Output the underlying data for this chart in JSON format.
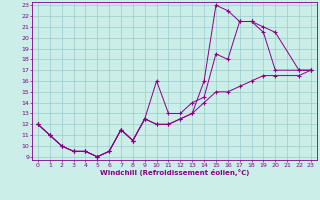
{
  "xlabel": "Windchill (Refroidissement éolien,°C)",
  "bg_color": "#cceee8",
  "line_color": "#880088",
  "grid_color": "#99cccc",
  "xlim": [
    -0.5,
    23.5
  ],
  "ylim": [
    8.7,
    23.3
  ],
  "xticks": [
    0,
    1,
    2,
    3,
    4,
    5,
    6,
    7,
    8,
    9,
    10,
    11,
    12,
    13,
    14,
    15,
    16,
    17,
    18,
    19,
    20,
    21,
    22,
    23
  ],
  "yticks": [
    9,
    10,
    11,
    12,
    13,
    14,
    15,
    16,
    17,
    18,
    19,
    20,
    21,
    22,
    23
  ],
  "line1_x": [
    0,
    1,
    2,
    3,
    4,
    5,
    6,
    7,
    8,
    9,
    10,
    11,
    12,
    13,
    14,
    15,
    16,
    17,
    18,
    19,
    20,
    22,
    23
  ],
  "line1_y": [
    12,
    11,
    10,
    9.5,
    9.5,
    9,
    9.5,
    11.5,
    10.5,
    12.5,
    12,
    12,
    12.5,
    13,
    16,
    23,
    22.5,
    21.5,
    21.5,
    20.5,
    17,
    17,
    17
  ],
  "line2_x": [
    0,
    1,
    2,
    3,
    4,
    5,
    6,
    7,
    8,
    9,
    10,
    11,
    12,
    13,
    14,
    15,
    16,
    17,
    18,
    19,
    20,
    22,
    23
  ],
  "line2_y": [
    12,
    11,
    10,
    9.5,
    9.5,
    9,
    9.5,
    11.5,
    10.5,
    12.5,
    16,
    13,
    13,
    14,
    14.5,
    18.5,
    18,
    21.5,
    21.5,
    21,
    20.5,
    17,
    17
  ],
  "line3_x": [
    0,
    1,
    2,
    3,
    4,
    5,
    6,
    7,
    8,
    9,
    10,
    11,
    12,
    13,
    14,
    15,
    16,
    17,
    18,
    19,
    20,
    22,
    23
  ],
  "line3_y": [
    12,
    11,
    10,
    9.5,
    9.5,
    9,
    9.5,
    11.5,
    10.5,
    12.5,
    12,
    12,
    12.5,
    13,
    14,
    15,
    15,
    15.5,
    16,
    16.5,
    16.5,
    16.5,
    17
  ]
}
